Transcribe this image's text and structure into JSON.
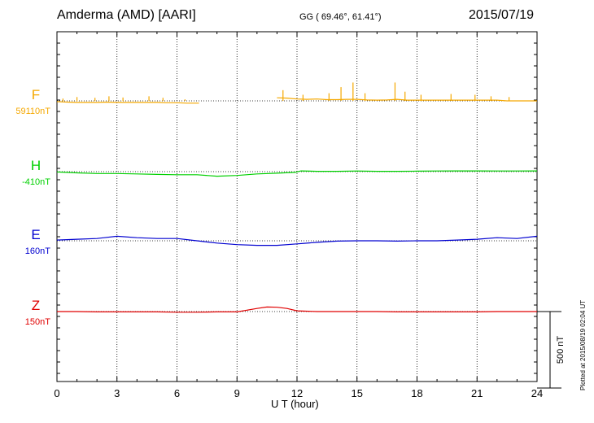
{
  "header": {
    "station": "Amderma (AMD)  [AARI]",
    "coords": "GG ( 69.46°,  61.41°)",
    "date": "2015/07/19"
  },
  "footer": {
    "plotted": "Plotted at 2015/08/19 02:04 UT"
  },
  "chart_data": {
    "type": "line",
    "xlabel": "U T (hour)",
    "xlim": [
      0,
      24
    ],
    "xticks": [
      "0",
      "3",
      "6",
      "9",
      "12",
      "15",
      "18",
      "21",
      "24"
    ],
    "scale_label": "500 nT",
    "scale_nT": 500,
    "grid": "dotted vertical lines at 3-hour intervals, dotted baseline per channel",
    "series": [
      {
        "name": "F",
        "baseline_label": "59110nT",
        "color": "#f5a800",
        "x": [
          0,
          0.5,
          1,
          1.5,
          2,
          2.5,
          3,
          3.5,
          4,
          4.5,
          5,
          5.5,
          6,
          6.5,
          7.1,
          11,
          11.5,
          12,
          12.5,
          13,
          13.5,
          14,
          14.5,
          15,
          15.5,
          16,
          16.5,
          17,
          17.5,
          18,
          18.5,
          19,
          19.5,
          20,
          20.5,
          21,
          21.5,
          22,
          22.5,
          23,
          23.5,
          24
        ],
        "y": [
          -5,
          -8,
          -10,
          -10,
          -10,
          -8,
          -10,
          -10,
          -10,
          -10,
          -10,
          -12,
          -12,
          -15,
          -15,
          20,
          18,
          12,
          10,
          12,
          8,
          8,
          10,
          10,
          6,
          5,
          6,
          10,
          5,
          5,
          5,
          5,
          5,
          5,
          5,
          5,
          5,
          5,
          0,
          0,
          0,
          0
        ],
        "gaps": [
          [
            7.1,
            11
          ]
        ],
        "spikes": [
          {
            "x": 0.3,
            "y": 15
          },
          {
            "x": 1.0,
            "y": 25
          },
          {
            "x": 1.9,
            "y": 20
          },
          {
            "x": 2.6,
            "y": 30
          },
          {
            "x": 3.3,
            "y": 22
          },
          {
            "x": 4.6,
            "y": 30
          },
          {
            "x": 5.3,
            "y": 20
          },
          {
            "x": 6.4,
            "y": 10
          },
          {
            "x": 11.3,
            "y": 70
          },
          {
            "x": 12.3,
            "y": 40
          },
          {
            "x": 13.6,
            "y": 50
          },
          {
            "x": 14.2,
            "y": 90
          },
          {
            "x": 14.8,
            "y": 120
          },
          {
            "x": 15.4,
            "y": 50
          },
          {
            "x": 16.9,
            "y": 120
          },
          {
            "x": 17.4,
            "y": 60
          },
          {
            "x": 18.2,
            "y": 40
          },
          {
            "x": 19.7,
            "y": 45
          },
          {
            "x": 20.9,
            "y": 40
          },
          {
            "x": 21.7,
            "y": 30
          },
          {
            "x": 22.6,
            "y": 25
          }
        ]
      },
      {
        "name": "H",
        "baseline_label": "-410nT",
        "color": "#00d000",
        "x": [
          0,
          1,
          2,
          3,
          4,
          5,
          6,
          7,
          8,
          9,
          10,
          11,
          11.9,
          12.2,
          13,
          14,
          15,
          16,
          17,
          18,
          19,
          20,
          21,
          22,
          23,
          24
        ],
        "y": [
          -2,
          -8,
          -12,
          -12,
          -15,
          -18,
          -20,
          -20,
          -30,
          -25,
          -15,
          -10,
          -5,
          5,
          2,
          2,
          4,
          2,
          2,
          3,
          4,
          5,
          5,
          4,
          4,
          5
        ],
        "spikes": []
      },
      {
        "name": "E",
        "baseline_label": "160nT",
        "color": "#0000d0",
        "x": [
          0,
          1,
          2,
          3,
          4,
          5,
          6,
          7,
          8,
          9,
          10,
          11,
          12,
          13,
          14,
          15,
          16,
          17,
          18,
          19,
          20,
          21,
          22,
          23,
          24
        ],
        "y": [
          5,
          10,
          15,
          30,
          20,
          15,
          15,
          0,
          -15,
          -25,
          -30,
          -30,
          -20,
          -10,
          -2,
          0,
          0,
          -2,
          0,
          0,
          5,
          10,
          20,
          15,
          30
        ],
        "spikes": []
      },
      {
        "name": "Z",
        "baseline_label": "150nT",
        "color": "#e00000",
        "x": [
          0,
          1,
          2,
          3,
          4,
          5,
          6,
          7,
          8,
          9,
          10,
          10.5,
          11,
          11.5,
          12,
          13,
          14,
          15,
          16,
          17,
          18,
          19,
          20,
          21,
          22,
          23,
          24
        ],
        "y": [
          0,
          0,
          -2,
          -2,
          -2,
          -2,
          -4,
          -4,
          -2,
          -2,
          20,
          30,
          28,
          20,
          5,
          0,
          0,
          0,
          0,
          -2,
          -2,
          -2,
          -2,
          -2,
          0,
          0,
          0
        ],
        "spikes": []
      }
    ]
  }
}
